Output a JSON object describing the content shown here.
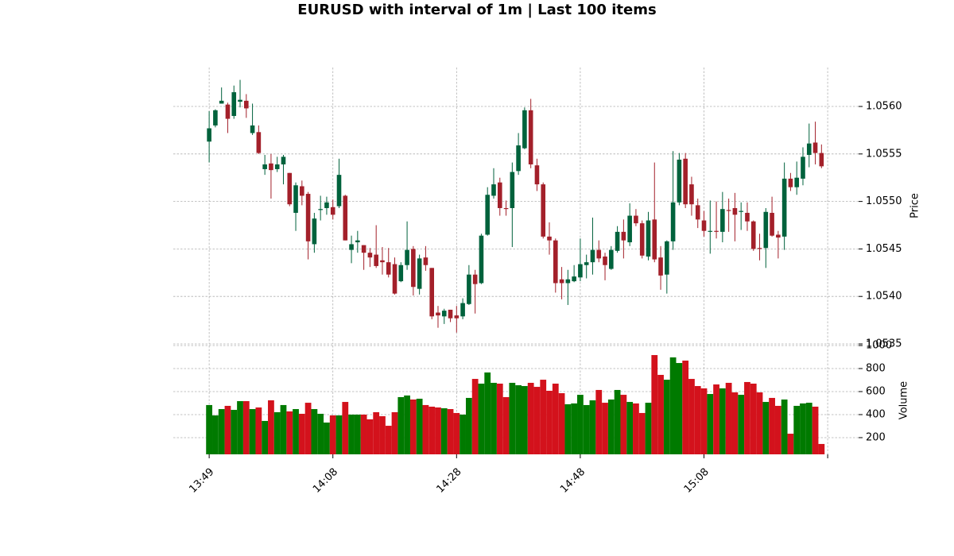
{
  "chart_data": {
    "type": "candlestick",
    "title": "EURUSD with interval of 1m | Last 100 items",
    "ylabel": "Price",
    "volume_label": "Volume",
    "grid": true,
    "up_color": "#00623c",
    "down_color": "#a3202a",
    "volume_up_color": "#007a00",
    "volume_down_color": "#d3121c",
    "xlim": [
      -5.8,
      105
    ],
    "xticks": [
      {
        "value": 0,
        "label": "13:49"
      },
      {
        "value": 20,
        "label": "14:08"
      },
      {
        "value": 40,
        "label": "14:28"
      },
      {
        "value": 60,
        "label": "14:48"
      },
      {
        "value": 80,
        "label": "15:08"
      },
      100
    ],
    "ylim": [
      1.0535,
      1.05641
    ],
    "yticks": [
      1.0535,
      {
        "value": 1.054,
        "label": "1.0540"
      },
      1.0545,
      {
        "value": 1.055,
        "label": "1.0550"
      },
      1.0555,
      {
        "value": 1.056,
        "label": "1.0560"
      }
    ],
    "volume_ylim": [
      55,
      1000
    ],
    "volume_yticks": [
      200,
      400,
      600,
      800,
      1000
    ],
    "open": [
      1.05563,
      1.0558,
      1.05603,
      1.05602,
      1.0559,
      1.05605,
      1.05606,
      1.05572,
      1.05573,
      1.05534,
      1.0554,
      1.05534,
      1.05539,
      1.0553,
      1.05488,
      1.05516,
      1.05508,
      1.05455,
      1.05491,
      1.05493,
      1.05494,
      1.05495,
      1.05506,
      1.05449,
      1.05457,
      1.05454,
      1.05446,
      1.05444,
      1.05438,
      1.05436,
      1.05434,
      1.05416,
      1.05433,
      1.0545,
      1.05408,
      1.05441,
      1.0543,
      1.05383,
      1.05379,
      1.05386,
      1.0538,
      1.05379,
      1.05392,
      1.05423,
      1.05414,
      1.05465,
      1.05506,
      1.0552,
      1.05493,
      1.05493,
      1.05532,
      1.05556,
      1.05596,
      1.05538,
      1.05518,
      1.05463,
      1.05459,
      1.05418,
      1.05414,
      1.05416,
      1.0542,
      1.05433,
      1.05436,
      1.05449,
      1.05442,
      1.05429,
      1.05448,
      1.05468,
      1.05457,
      1.05485,
      1.05477,
      1.05442,
      1.05481,
      1.05441,
      1.05423,
      1.05458,
      1.05499,
      1.05545,
      1.05518,
      1.05496,
      1.0548,
      1.05468,
      1.05469,
      1.05468,
      1.05491,
      1.05493,
      1.05489,
      1.05488,
      1.05479,
      1.05451,
      1.05451,
      1.05488,
      1.05465,
      1.05463,
      1.05524,
      1.05515,
      1.05524,
      1.05549,
      1.05562,
      1.05551
    ],
    "high": [
      1.05595,
      1.05597,
      1.0562,
      1.05604,
      1.05622,
      1.05628,
      1.05613,
      1.05603,
      1.0558,
      1.05549,
      1.0555,
      1.05547,
      1.05549,
      1.0553,
      1.0552,
      1.05522,
      1.0551,
      1.05488,
      1.05506,
      1.05505,
      1.05502,
      1.05545,
      1.05507,
      1.05464,
      1.05469,
      1.05454,
      1.05451,
      1.05475,
      1.05452,
      1.05451,
      1.05441,
      1.05436,
      1.05479,
      1.05453,
      1.05444,
      1.05453,
      1.0543,
      1.0539,
      1.05387,
      1.05386,
      1.0539,
      1.05398,
      1.05433,
      1.05428,
      1.05466,
      1.05515,
      1.05535,
      1.05525,
      1.05501,
      1.05541,
      1.05572,
      1.05599,
      1.05608,
      1.05545,
      1.0552,
      1.05478,
      1.05461,
      1.05431,
      1.05428,
      1.05433,
      1.05461,
      1.05444,
      1.05483,
      1.05459,
      1.05446,
      1.05453,
      1.05474,
      1.05481,
      1.05498,
      1.05492,
      1.0548,
      1.05489,
      1.05541,
      1.05453,
      1.05459,
      1.05553,
      1.05551,
      1.05551,
      1.05526,
      1.05503,
      1.0549,
      1.05501,
      1.055,
      1.0551,
      1.05503,
      1.05509,
      1.05499,
      1.05499,
      1.0548,
      1.05466,
      1.05493,
      1.05505,
      1.05469,
      1.05541,
      1.0553,
      1.05542,
      1.05557,
      1.05582,
      1.05584,
      1.0556
    ],
    "low": [
      1.05541,
      1.05578,
      1.05603,
      1.05572,
      1.05587,
      1.05599,
      1.05588,
      1.0557,
      1.0555,
      1.05528,
      1.05503,
      1.05531,
      1.05518,
      1.05495,
      1.05469,
      1.05496,
      1.05439,
      1.05446,
      1.0548,
      1.05486,
      1.05481,
      1.05493,
      1.05459,
      1.05435,
      1.05446,
      1.05428,
      1.05431,
      1.0543,
      1.05423,
      1.0542,
      1.05402,
      1.05415,
      1.05428,
      1.05401,
      1.05402,
      1.05427,
      1.05376,
      1.05367,
      1.05371,
      1.05373,
      1.05362,
      1.05376,
      1.05391,
      1.05382,
      1.05413,
      1.05464,
      1.05503,
      1.05485,
      1.05485,
      1.05452,
      1.05528,
      1.05555,
      1.05535,
      1.05511,
      1.05461,
      1.05444,
      1.05404,
      1.05397,
      1.05391,
      1.05415,
      1.05416,
      1.05419,
      1.05423,
      1.05436,
      1.05417,
      1.05428,
      1.05446,
      1.0544,
      1.05453,
      1.05474,
      1.0544,
      1.05438,
      1.05436,
      1.05407,
      1.05403,
      1.05449,
      1.05496,
      1.05493,
      1.05485,
      1.05472,
      1.05463,
      1.05445,
      1.05461,
      1.05457,
      1.05468,
      1.05458,
      1.0547,
      1.05469,
      1.05448,
      1.05438,
      1.0543,
      1.05463,
      1.0544,
      1.05449,
      1.05511,
      1.05507,
      1.05517,
      1.05536,
      1.05539,
      1.05535
    ],
    "close": [
      1.05577,
      1.05596,
      1.05606,
      1.05587,
      1.05615,
      1.05607,
      1.05598,
      1.0558,
      1.05551,
      1.05539,
      1.05533,
      1.05539,
      1.05547,
      1.05497,
      1.05517,
      1.05506,
      1.05458,
      1.05482,
      1.05492,
      1.05499,
      1.05486,
      1.05528,
      1.05459,
      1.05455,
      1.05459,
      1.05446,
      1.05441,
      1.05432,
      1.05436,
      1.05423,
      1.05403,
      1.05433,
      1.05449,
      1.0541,
      1.0544,
      1.05433,
      1.05379,
      1.0538,
      1.05385,
      1.05377,
      1.05377,
      1.05393,
      1.05423,
      1.05413,
      1.05464,
      1.05507,
      1.05518,
      1.05493,
      1.05492,
      1.05531,
      1.05559,
      1.05596,
      1.05539,
      1.05518,
      1.05463,
      1.05459,
      1.05414,
      1.05414,
      1.05418,
      1.05421,
      1.05434,
      1.05436,
      1.05449,
      1.0544,
      1.05433,
      1.05449,
      1.05468,
      1.05459,
      1.05485,
      1.05477,
      1.05443,
      1.0548,
      1.05439,
      1.05422,
      1.05458,
      1.05499,
      1.05544,
      1.05497,
      1.05497,
      1.05481,
      1.05469,
      1.05469,
      1.05468,
      1.05492,
      1.0549,
      1.05486,
      1.0549,
      1.05479,
      1.0545,
      1.0545,
      1.05489,
      1.05464,
      1.05462,
      1.05524,
      1.05515,
      1.05525,
      1.05547,
      1.05561,
      1.05551,
      1.05537
    ],
    "volume": [
      483,
      393,
      448,
      476,
      441,
      517,
      517,
      448,
      462,
      345,
      524,
      421,
      483,
      428,
      448,
      407,
      503,
      448,
      407,
      331,
      393,
      393,
      510,
      400,
      400,
      400,
      359,
      421,
      386,
      303,
      421,
      552,
      566,
      531,
      538,
      483,
      469,
      462,
      455,
      448,
      414,
      400,
      545,
      710,
      669,
      766,
      676,
      669,
      552,
      676,
      655,
      648,
      676,
      641,
      703,
      607,
      669,
      586,
      490,
      497,
      572,
      483,
      524,
      614,
      503,
      531,
      614,
      572,
      510,
      497,
      414,
      503,
      917,
      745,
      703,
      897,
      848,
      869,
      710,
      648,
      628,
      579,
      662,
      628,
      676,
      593,
      572,
      683,
      669,
      593,
      510,
      545,
      476,
      531,
      234,
      476,
      497,
      503,
      469,
      145
    ]
  }
}
